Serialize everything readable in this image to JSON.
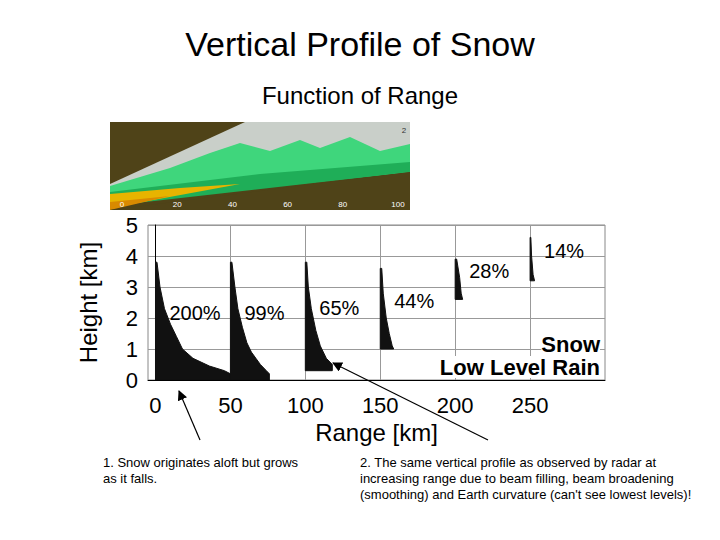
{
  "chart_data": {
    "type": "profile",
    "title": "Vertical Profile of Snow",
    "subtitle": "Function of Range",
    "xlabel": "Range [km]",
    "ylabel": "Height [km]",
    "xlim": [
      -5,
      300
    ],
    "xticks": [
      0,
      50,
      100,
      150,
      200,
      250
    ],
    "ylim": [
      0,
      5
    ],
    "yticks": [
      0,
      1,
      2,
      3,
      4,
      5
    ],
    "grid": true,
    "color": "#111111",
    "series": [
      {
        "label": "200%",
        "range": 0,
        "x": [
          1,
          3,
          6,
          10,
          14,
          18,
          25,
          36,
          46,
          50,
          50
        ],
        "y": [
          3.8,
          3.0,
          2.3,
          1.8,
          1.4,
          1.0,
          0.7,
          0.45,
          0.3,
          0.2,
          0
        ]
      },
      {
        "label": "99%",
        "range": 50,
        "x": [
          51,
          53,
          55,
          58,
          61,
          64,
          67,
          70,
          74,
          76,
          76
        ],
        "y": [
          3.8,
          3.0,
          2.3,
          1.7,
          1.2,
          0.9,
          0.7,
          0.5,
          0.3,
          0.2,
          0
        ]
      },
      {
        "label": "65%",
        "range": 100,
        "x": [
          101,
          102,
          104,
          107,
          110,
          114,
          118,
          118
        ],
        "y": [
          3.8,
          3.0,
          2.3,
          1.6,
          1.1,
          0.7,
          0.5,
          0.3
        ]
      },
      {
        "label": "44%",
        "range": 150,
        "x": [
          151,
          152,
          154,
          156,
          158,
          159
        ],
        "y": [
          3.6,
          2.8,
          2.0,
          1.5,
          1.1,
          1.0
        ]
      },
      {
        "label": "28%",
        "range": 200,
        "x": [
          201,
          203,
          204,
          205
        ],
        "y": [
          3.9,
          3.3,
          2.8,
          2.6
        ]
      },
      {
        "label": "14%",
        "range": 250,
        "x": [
          250.5,
          251,
          252,
          253
        ],
        "y": [
          4.6,
          4.0,
          3.4,
          3.2
        ]
      }
    ],
    "annotations": [
      "Snow",
      "Low Level Rain"
    ]
  },
  "inset": {
    "xticks": [
      0,
      20,
      40,
      60,
      80,
      100
    ],
    "yticks": [
      2
    ]
  },
  "notes": [
    "1. Snow originates aloft but grows as it falls.",
    "2. The same vertical profile as observed by radar at increasing range due to beam filling, beam broadening (smoothing) and Earth curvature (can't see lowest levels)!"
  ]
}
